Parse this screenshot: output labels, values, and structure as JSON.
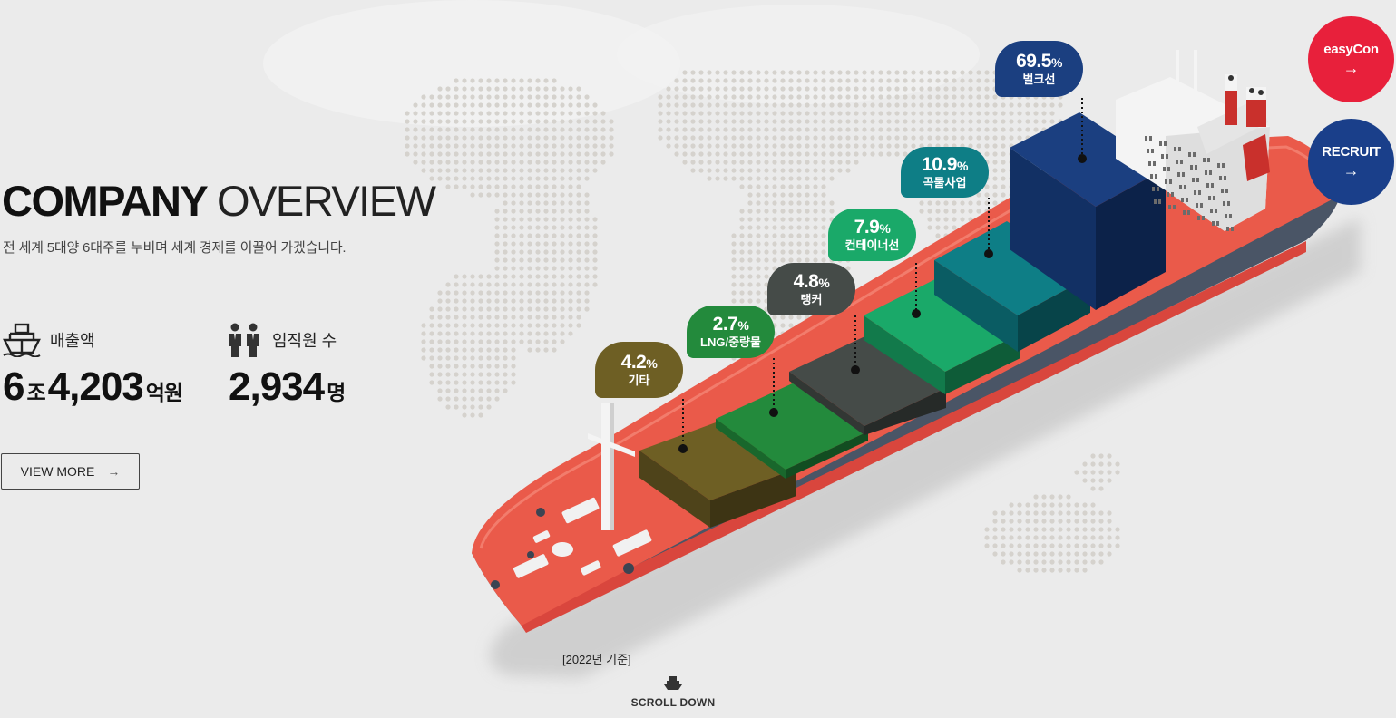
{
  "overview": {
    "title_bold": "COMPANY",
    "title_light": "OVERVIEW",
    "subtitle": "전 세계 5대양 6대주를 누비며 세계 경제를 이끌어 가겠습니다."
  },
  "stats": {
    "sales": {
      "label": "매출액",
      "icon": "ship-icon",
      "num1": "6",
      "unit1": "조",
      "num2": "4,203",
      "unit2": "억원"
    },
    "employees": {
      "label": "임직원 수",
      "icon": "people-icon",
      "num": "2,934",
      "unit": "명"
    }
  },
  "view_more": {
    "label": "VIEW MORE",
    "arrow": "→"
  },
  "quick_links": {
    "easycon": {
      "label": "easyCon",
      "arrow": "→",
      "color": "#e8203b"
    },
    "recruit": {
      "label": "RECRUIT",
      "arrow": "→",
      "color": "#1a3f8a"
    }
  },
  "segments": [
    {
      "pct": "69.5",
      "name": "벌크선",
      "color": "#1b3f80"
    },
    {
      "pct": "10.9",
      "name": "곡물사업",
      "color": "#0e7e86"
    },
    {
      "pct": "7.9",
      "name": "컨테이너선",
      "color": "#1aa969"
    },
    {
      "pct": "4.8",
      "name": "탱커",
      "color": "#454b48"
    },
    {
      "pct": "2.7",
      "name": "LNG/중량물",
      "color": "#238a3c"
    },
    {
      "pct": "4.2",
      "name": "기타",
      "color": "#6e5f24"
    }
  ],
  "pct_sign": "%",
  "basis": "[2022년 기준]",
  "scroll": {
    "label": "SCROLL DOWN",
    "icon": "ship-icon"
  }
}
